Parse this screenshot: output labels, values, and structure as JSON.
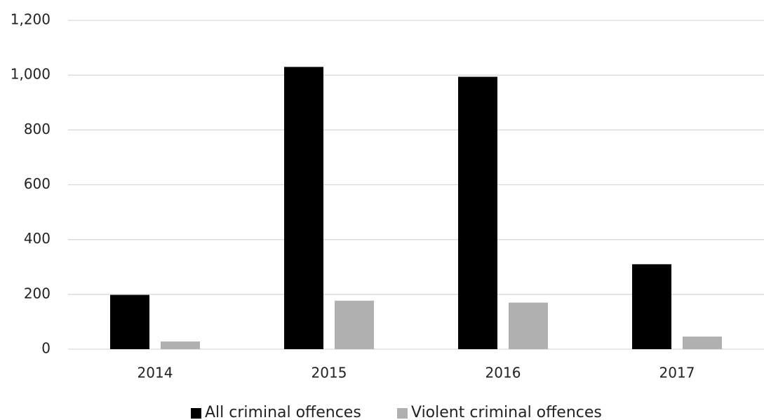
{
  "chart_data": {
    "type": "bar",
    "categories": [
      "2014",
      "2015",
      "2016",
      "2017"
    ],
    "series": [
      {
        "name": "All criminal offences",
        "color": "#000000",
        "values": [
          198,
          1030,
          994,
          310
        ]
      },
      {
        "name": "Violent criminal offences",
        "color": "#b0b0b0",
        "values": [
          28,
          177,
          170,
          46
        ]
      }
    ],
    "ylim": [
      0,
      1200
    ],
    "yticks": [
      0,
      200,
      400,
      600,
      800,
      {
        "value": 1000,
        "label": "1,000"
      },
      {
        "value": 1200,
        "label": "1,200"
      }
    ],
    "grid": true,
    "legend": "bottom"
  }
}
